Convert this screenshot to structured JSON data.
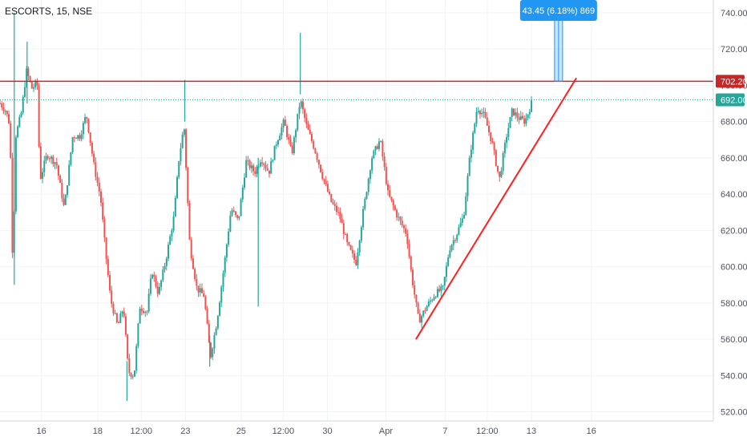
{
  "header": {
    "title": "ESCORTS, 15, NSE"
  },
  "colors": {
    "up": "#26a69a",
    "down": "#ef5350",
    "resistance": "#c62828",
    "trend": "#ff1f1f",
    "measure": "#2196f3",
    "last": "#26a69a"
  },
  "chart_data": {
    "type": "candlestick",
    "title": "ESCORTS, 15, NSE",
    "ylim": [
      515,
      747
    ],
    "y_ticks": [
      520,
      540,
      560,
      580,
      600,
      620,
      640,
      660,
      680,
      700,
      720,
      740
    ],
    "x_ticks": [
      {
        "label": "16",
        "pos": 0.058
      },
      {
        "label": "18",
        "pos": 0.137
      },
      {
        "label": "12:00",
        "pos": 0.198
      },
      {
        "label": "23",
        "pos": 0.26
      },
      {
        "label": "25",
        "pos": 0.338
      },
      {
        "label": "12:00",
        "pos": 0.397
      },
      {
        "label": "30",
        "pos": 0.459
      },
      {
        "label": "Apr",
        "pos": 0.541
      },
      {
        "label": "7",
        "pos": 0.624
      },
      {
        "label": "12:00",
        "pos": 0.683
      },
      {
        "label": "13",
        "pos": 0.745
      },
      {
        "label": "16",
        "pos": 0.829
      }
    ],
    "price_path": [
      [
        0.0,
        690
      ],
      [
        0.008,
        686
      ],
      [
        0.014,
        678
      ],
      [
        0.018,
        597
      ],
      [
        0.022,
        672
      ],
      [
        0.03,
        685
      ],
      [
        0.037,
        708
      ],
      [
        0.045,
        698
      ],
      [
        0.052,
        702
      ],
      [
        0.056,
        648
      ],
      [
        0.066,
        662
      ],
      [
        0.079,
        657
      ],
      [
        0.09,
        632
      ],
      [
        0.102,
        672
      ],
      [
        0.112,
        672
      ],
      [
        0.121,
        684
      ],
      [
        0.132,
        655
      ],
      [
        0.141,
        638
      ],
      [
        0.147,
        612
      ],
      [
        0.155,
        582
      ],
      [
        0.165,
        567
      ],
      [
        0.173,
        578
      ],
      [
        0.18,
        542
      ],
      [
        0.188,
        540
      ],
      [
        0.196,
        578
      ],
      [
        0.206,
        575
      ],
      [
        0.213,
        598
      ],
      [
        0.222,
        585
      ],
      [
        0.232,
        603
      ],
      [
        0.244,
        628
      ],
      [
        0.251,
        660
      ],
      [
        0.258,
        678
      ],
      [
        0.266,
        612
      ],
      [
        0.276,
        588
      ],
      [
        0.286,
        584
      ],
      [
        0.295,
        550
      ],
      [
        0.304,
        570
      ],
      [
        0.314,
        600
      ],
      [
        0.324,
        632
      ],
      [
        0.334,
        625
      ],
      [
        0.345,
        658
      ],
      [
        0.357,
        652
      ],
      [
        0.366,
        660
      ],
      [
        0.377,
        652
      ],
      [
        0.387,
        668
      ],
      [
        0.398,
        680
      ],
      [
        0.409,
        662
      ],
      [
        0.421,
        692
      ],
      [
        0.43,
        677
      ],
      [
        0.441,
        665
      ],
      [
        0.452,
        650
      ],
      [
        0.464,
        636
      ],
      [
        0.476,
        628
      ],
      [
        0.487,
        612
      ],
      [
        0.499,
        602
      ],
      [
        0.509,
        630
      ],
      [
        0.521,
        660
      ],
      [
        0.533,
        670
      ],
      [
        0.544,
        640
      ],
      [
        0.557,
        628
      ],
      [
        0.57,
        618
      ],
      [
        0.577,
        595
      ],
      [
        0.587,
        570
      ],
      [
        0.598,
        578
      ],
      [
        0.61,
        585
      ],
      [
        0.621,
        588
      ],
      [
        0.63,
        610
      ],
      [
        0.64,
        618
      ],
      [
        0.65,
        628
      ],
      [
        0.659,
        662
      ],
      [
        0.669,
        688
      ],
      [
        0.679,
        683
      ],
      [
        0.69,
        668
      ],
      [
        0.7,
        648
      ],
      [
        0.71,
        672
      ],
      [
        0.718,
        686
      ],
      [
        0.727,
        682
      ],
      [
        0.736,
        680
      ],
      [
        0.745,
        690
      ]
    ],
    "spikes": [
      {
        "pos": 0.02,
        "high": 740,
        "low": 590
      },
      {
        "pos": 0.038,
        "high": 724,
        "low": 690
      },
      {
        "pos": 0.178,
        "high": 548,
        "low": 526
      },
      {
        "pos": 0.259,
        "high": 703,
        "low": 680
      },
      {
        "pos": 0.421,
        "high": 729,
        "low": 695
      },
      {
        "pos": 0.294,
        "high": 562,
        "low": 545
      },
      {
        "pos": 0.362,
        "high": 660,
        "low": 578
      }
    ],
    "resistance": {
      "value": 702.2,
      "label": "702.20"
    },
    "last_price": {
      "value": 692.0,
      "label": "692.00"
    },
    "trendline": {
      "from": {
        "pos": 0.583,
        "value": 560
      },
      "to": {
        "pos": 0.808,
        "value": 704
      }
    },
    "measure": {
      "label": "43.45 (6.18%) 869",
      "pos": 0.783,
      "from_value": 702.2,
      "to_value": 747
    }
  }
}
